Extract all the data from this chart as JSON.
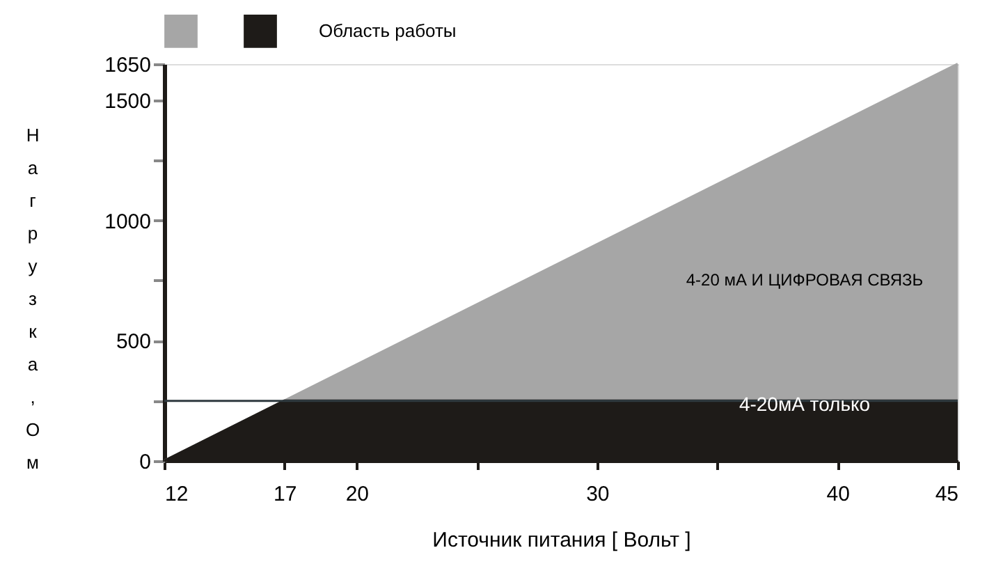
{
  "chart_data": {
    "type": "area",
    "xlabel": "Источник питания [ Вольт ]",
    "ylabel": "Нагрузка, Ом",
    "legend": "top",
    "series": [
      {
        "color": "#a6a6a6",
        "x": [
          12,
          45
        ],
        "values": [
          0,
          1650
        ]
      },
      {
        "name": "Область работы",
        "color": "#1e1b18",
        "x": [
          12,
          17,
          45
        ],
        "values": [
          0,
          250,
          250
        ]
      }
    ],
    "xlim": [
      12,
      45
    ],
    "ylim": [
      0,
      1650
    ],
    "xticks": [
      12,
      17,
      20,
      {
        "value": 25,
        "label": null
      },
      30,
      {
        "value": 35,
        "label": null
      },
      40,
      45
    ],
    "yticks": [
      0,
      {
        "value": 250,
        "label": null
      },
      500,
      {
        "value": 750,
        "label": null
      },
      1000,
      {
        "value": 1250,
        "label": null
      },
      1500,
      1650
    ],
    "ref_lines": [
      {
        "axis": "y",
        "value": 250,
        "color": "#2f3a3f"
      }
    ],
    "annotations": [
      "4-20 мА И ЦИФРОВАЯ СВЯЗЬ",
      "4-20мА только"
    ],
    "grid": false
  }
}
